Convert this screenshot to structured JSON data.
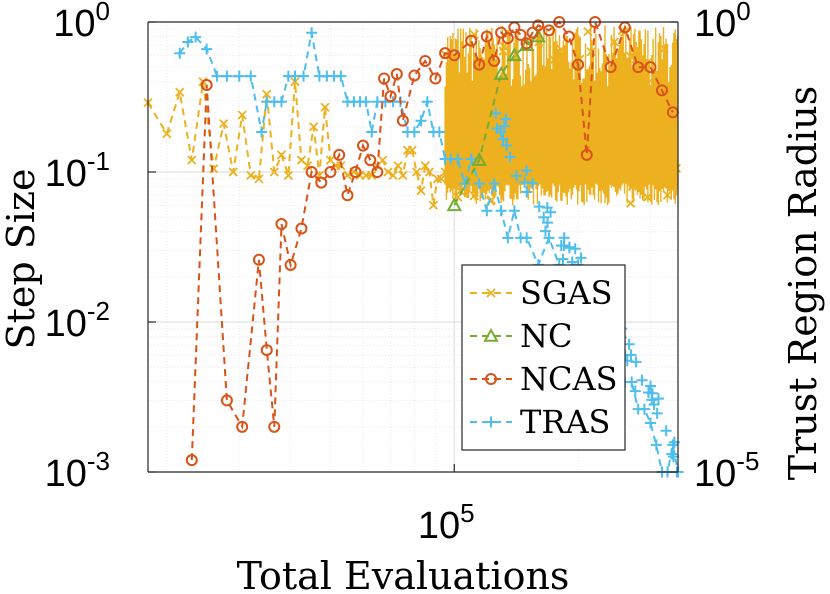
{
  "chart_data": {
    "type": "line",
    "xscale": "log",
    "xlim": [
      18000,
      350000
    ],
    "xlabel": "Total Evaluations",
    "xticks": [
      {
        "value": 100000,
        "base": "10",
        "exp": "5"
      }
    ],
    "left_axis": {
      "label": "Step Size",
      "scale": "log",
      "ylim": [
        0.001,
        1
      ],
      "ticks": [
        {
          "value": 1,
          "base": "10",
          "exp": "0"
        },
        {
          "value": 0.1,
          "base": "10",
          "exp": "-1"
        },
        {
          "value": 0.01,
          "base": "10",
          "exp": "-2"
        },
        {
          "value": 0.001,
          "base": "10",
          "exp": "-3"
        }
      ]
    },
    "right_axis": {
      "label": "Trust Region Radius",
      "scale": "log",
      "ylim": [
        1e-05,
        1
      ],
      "ticks": [
        {
          "value": 1,
          "base": "10",
          "exp": "0"
        },
        {
          "value": 1e-05,
          "base": "10",
          "exp": "-5"
        }
      ]
    },
    "grid": true,
    "legend": {
      "position": "bottom-right"
    },
    "series": [
      {
        "name": "SGAS",
        "color": "#EDB120",
        "marker": "x",
        "axis": "left",
        "x": [
          18000,
          20000,
          21500,
          23000,
          24500,
          26000,
          27500,
          29000,
          30500,
          32000,
          33500,
          35000,
          36500,
          38000,
          39500,
          41000,
          42500,
          44000,
          45500,
          47000,
          48500,
          50000,
          51500,
          53000,
          55000,
          57000,
          59000,
          61000,
          63000,
          65000,
          67000,
          69000,
          71000,
          73000,
          75000,
          77000,
          79000,
          81000,
          83000,
          85000,
          87000,
          89000,
          91000,
          93000,
          95000
        ],
        "y": [
          0.29,
          0.18,
          0.34,
          0.12,
          0.4,
          0.105,
          0.21,
          0.1,
          0.24,
          0.095,
          0.09,
          0.33,
          0.1,
          0.13,
          0.095,
          0.4,
          0.12,
          0.11,
          0.2,
          0.095,
          0.27,
          0.12,
          0.11,
          0.11,
          0.095,
          0.1,
          0.095,
          0.095,
          0.095,
          0.11,
          0.12,
          0.1,
          0.095,
          0.11,
          0.095,
          0.14,
          0.14,
          0.1,
          0.075,
          0.11,
          0.1,
          0.06,
          0.09,
          0.09,
          0.1
        ],
        "dense_band": {
          "x_range": [
            95000,
            350000
          ],
          "y_low": 0.06,
          "y_high": 0.95
        }
      },
      {
        "name": "NC",
        "color": "#77AC30",
        "marker": "triangle",
        "axis": "left",
        "x": [
          100000,
          115000,
          130000,
          140000,
          150000,
          160000
        ],
        "y": [
          0.06,
          0.12,
          0.45,
          0.6,
          0.7,
          0.8
        ]
      },
      {
        "name": "NCAS",
        "color": "#D95319",
        "marker": "circle",
        "axis": "left",
        "x": [
          23000,
          25000,
          28000,
          30500,
          33500,
          35000,
          36500,
          38000,
          40000,
          42500,
          45000,
          47500,
          50000,
          52500,
          55000,
          57500,
          60000,
          62500,
          65000,
          67500,
          70000,
          72500,
          75000,
          80000,
          85000,
          90000,
          95000,
          100000,
          110000,
          115000,
          120000,
          125000,
          130000,
          135000,
          140000,
          145000,
          150000,
          155000,
          160000,
          170000,
          180000,
          190000,
          200000,
          210000,
          220000,
          240000,
          260000,
          280000,
          300000,
          320000,
          340000
        ],
        "y": [
          0.0012,
          0.38,
          0.003,
          0.002,
          0.026,
          0.0065,
          0.002,
          0.045,
          0.024,
          0.042,
          0.1,
          0.085,
          0.1,
          0.13,
          0.07,
          0.1,
          0.15,
          0.12,
          0.1,
          0.42,
          0.32,
          0.45,
          0.22,
          0.44,
          0.55,
          0.42,
          0.62,
          0.6,
          0.75,
          0.52,
          0.8,
          0.55,
          0.85,
          0.78,
          0.92,
          0.82,
          0.72,
          0.85,
          0.95,
          0.88,
          1.0,
          0.8,
          0.52,
          0.13,
          1.0,
          0.5,
          0.92,
          0.5,
          0.5,
          0.35,
          0.25
        ]
      },
      {
        "name": "TRAS",
        "color": "#4DBEEE",
        "marker": "plus",
        "axis": "right",
        "x": [
          21500,
          22500,
          23500,
          25000,
          26500,
          28000,
          30000,
          32000,
          34000,
          35000,
          36500,
          38000,
          39500,
          41000,
          43000,
          45000,
          47000,
          49000,
          51000,
          53000,
          55000,
          57000,
          59000,
          61000,
          63000,
          65000,
          68000,
          71000,
          74000,
          77000,
          80000,
          83000,
          86000,
          89000,
          92000,
          95000,
          98000,
          102000,
          106000,
          110000,
          115000,
          120000,
          125000,
          130000,
          135000,
          140000,
          145000,
          150000,
          160000,
          170000,
          180000,
          190000,
          200000,
          210000,
          220000,
          230000,
          240000,
          250000,
          260000,
          270000,
          280000,
          290000,
          300000,
          310000,
          320000,
          330000,
          340000,
          350000
        ],
        "y": [
          0.45,
          0.6,
          0.68,
          0.5,
          0.25,
          0.25,
          0.25,
          0.25,
          0.06,
          0.13,
          0.13,
          0.13,
          0.25,
          0.25,
          0.25,
          0.76,
          0.25,
          0.25,
          0.25,
          0.25,
          0.13,
          0.13,
          0.13,
          0.13,
          0.06,
          0.13,
          0.13,
          0.13,
          0.13,
          0.06,
          0.06,
          0.08,
          0.13,
          0.06,
          0.06,
          0.03,
          0.03,
          0.03,
          0.016,
          0.03,
          0.016,
          0.008,
          0.016,
          0.008,
          0.004,
          0.008,
          0.004,
          0.004,
          0.002,
          0.004,
          0.002,
          0.001,
          0.002,
          0.0005,
          0.0003,
          0.0002,
          0.0001,
          0.0003,
          0.0001,
          0.0001,
          5e-05,
          5e-05,
          3.5e-05,
          2e-05,
          1e-05,
          1e-05,
          2e-05,
          1e-05
        ]
      }
    ]
  }
}
